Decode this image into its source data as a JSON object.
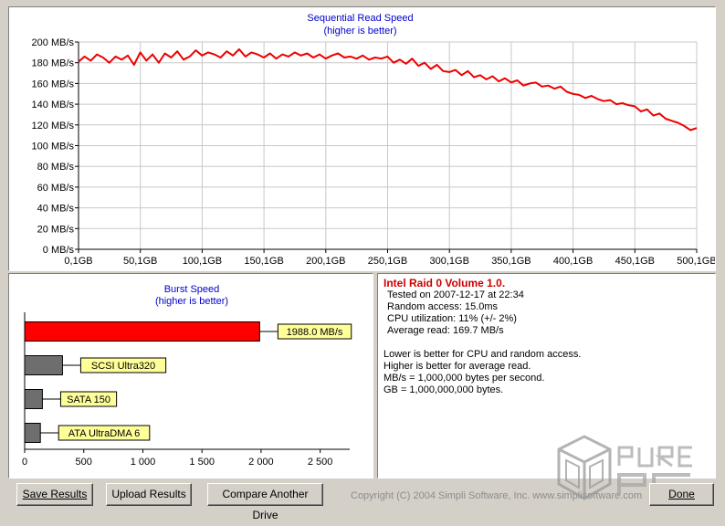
{
  "chart_data": [
    {
      "type": "line",
      "title": "Sequential Read Speed",
      "subtitle": "(higher is better)",
      "ylim": [
        0,
        200
      ],
      "yticks": [
        0,
        20,
        40,
        60,
        80,
        100,
        120,
        140,
        160,
        180,
        200
      ],
      "ytick_labels": [
        "0 MB/s",
        "20 MB/s",
        "40 MB/s",
        "60 MB/s",
        "80 MB/s",
        "100 MB/s",
        "120 MB/s",
        "140 MB/s",
        "160 MB/s",
        "180 MB/s",
        "200 MB/s"
      ],
      "xlim": [
        0.1,
        500.1
      ],
      "xticks": [
        0.1,
        50.1,
        100.1,
        150.1,
        200.1,
        250.1,
        300.1,
        350.1,
        400.1,
        450.1,
        500.1
      ],
      "xtick_labels": [
        "0,1GB",
        "50,1GB",
        "100,1GB",
        "150,1GB",
        "200,1GB",
        "250,1GB",
        "300,1GB",
        "350,1GB",
        "400,1GB",
        "450,1GB",
        "500,1GB"
      ],
      "grid": true,
      "line_color": "#ee0000",
      "series": [
        {
          "x": [
            0.1,
            5,
            10,
            15,
            20,
            25,
            30,
            35,
            40,
            45,
            50,
            55,
            60,
            65,
            70,
            75,
            80,
            85,
            90,
            95,
            100,
            105,
            110,
            115,
            120,
            125,
            130,
            135,
            140,
            145,
            150,
            155,
            160,
            165,
            170,
            175,
            180,
            185,
            190,
            195,
            200,
            205,
            210,
            215,
            220,
            225,
            230,
            235,
            240,
            245,
            250,
            255,
            260,
            265,
            270,
            275,
            280,
            285,
            290,
            295,
            300,
            305,
            310,
            315,
            320,
            325,
            330,
            335,
            340,
            345,
            350,
            355,
            360,
            365,
            370,
            375,
            380,
            385,
            390,
            395,
            400,
            405,
            410,
            415,
            420,
            425,
            430,
            435,
            440,
            445,
            450,
            455,
            460,
            465,
            470,
            475,
            480,
            485,
            490,
            495,
            500.1
          ],
          "values": [
            181,
            186,
            182,
            188,
            185,
            180,
            186,
            183,
            187,
            178,
            190,
            182,
            188,
            180,
            189,
            185,
            191,
            183,
            186,
            192,
            187,
            190,
            188,
            185,
            191,
            187,
            193,
            186,
            190,
            188,
            185,
            189,
            184,
            188,
            186,
            190,
            187,
            189,
            185,
            188,
            184,
            187,
            189,
            185,
            186,
            184,
            187,
            183,
            185,
            184,
            186,
            180,
            183,
            179,
            184,
            177,
            180,
            174,
            178,
            172,
            171,
            173,
            168,
            172,
            166,
            168,
            164,
            167,
            162,
            165,
            161,
            163,
            158,
            160,
            161,
            157,
            158,
            155,
            157,
            152,
            150,
            149,
            146,
            148,
            145,
            143,
            144,
            140,
            141,
            139,
            138,
            133,
            135,
            129,
            131,
            126,
            124,
            122,
            119,
            115,
            117
          ]
        }
      ]
    },
    {
      "type": "bar",
      "orientation": "horizontal",
      "title": "Burst Speed",
      "subtitle": "(higher is better)",
      "xlim": [
        0,
        2750
      ],
      "xticks": [
        0,
        500,
        1000,
        1500,
        2000,
        2500
      ],
      "xtick_labels": [
        "0",
        "500",
        "1 000",
        "1 500",
        "2 000",
        "2 500"
      ],
      "categories": [
        "Intel Raid 0 Volume 1.0",
        "SCSI Ultra320",
        "SATA 150",
        "ATA UltraDMA 6"
      ],
      "values": [
        1988.0,
        320,
        150,
        133
      ],
      "bar_labels": [
        "1988.0 MB/s",
        "SCSI Ultra320",
        "SATA 150",
        "ATA UltraDMA 6"
      ],
      "bar_colors": [
        "#ff0000",
        "#6e6e6e",
        "#6e6e6e",
        "#6e6e6e"
      ],
      "label_bg": "#ffff99"
    }
  ],
  "info": {
    "title": "Intel Raid 0 Volume 1.0.",
    "lines": [
      "Tested on 2007-12-17 at 22:34",
      "Random access: 15.0ms",
      "CPU utilization: 11% (+/- 2%)",
      "Average read: 169.7 MB/s"
    ],
    "notes": [
      "Lower is better for CPU and random access.",
      "Higher is better for average read.",
      "MB/s = 1,000,000 bytes per second.",
      "GB = 1,000,000,000 bytes."
    ],
    "title_color": "#cc0000"
  },
  "buttons": {
    "save": "Save Results",
    "upload": "Upload Results",
    "compare": "Compare Another Drive",
    "done": "Done"
  },
  "copyright": "Copyright (C) 2004 Simpli Software, Inc. www.simplisoftware.com",
  "colors": {
    "title_blue": "#0000cc",
    "window_bg": "#d4d0c8"
  }
}
